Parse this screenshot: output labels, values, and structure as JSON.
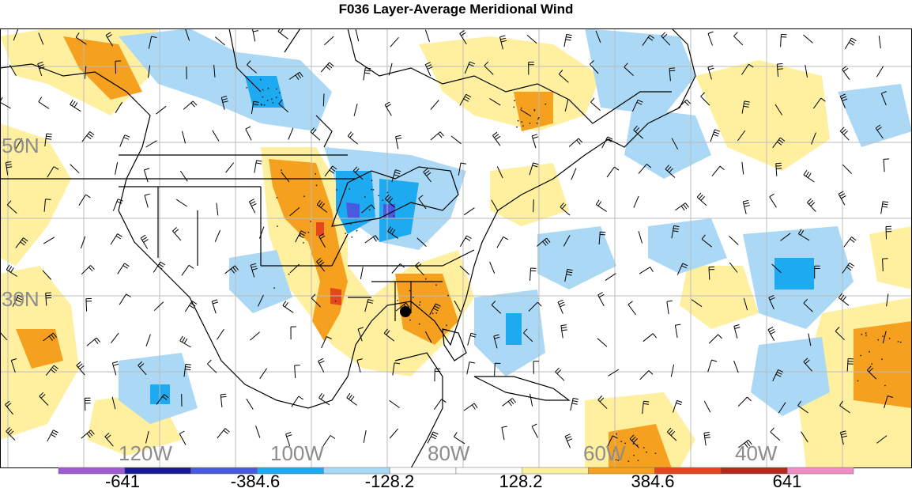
{
  "title": "F036 Layer-Average Meridional Wind",
  "lat_labels": [
    "50N",
    "30N"
  ],
  "lon_labels": [
    "120W",
    "100W",
    "80W",
    "60W",
    "40W"
  ],
  "colorbar": {
    "colors": [
      "#a05ad2",
      "#1a1a96",
      "#4a5ae0",
      "#1eaaf0",
      "#a8d8f5",
      "#ffffff",
      "#ffffff",
      "#fff0a0",
      "#f5a01e",
      "#e6461e",
      "#b4281e",
      "#f08cc8"
    ],
    "labels": [
      "-641",
      "-384.6",
      "-128.2",
      "128.2",
      "384.6",
      "641"
    ]
  },
  "colors": {
    "light_blue": "#aad8f5",
    "blue": "#1eaaf0",
    "dark_blue": "#4a5ae0",
    "light_yellow": "#fff0a0",
    "orange": "#f5a01e",
    "red": "#e6461e",
    "grid": "#bbbbbb",
    "coast": "#000000"
  }
}
